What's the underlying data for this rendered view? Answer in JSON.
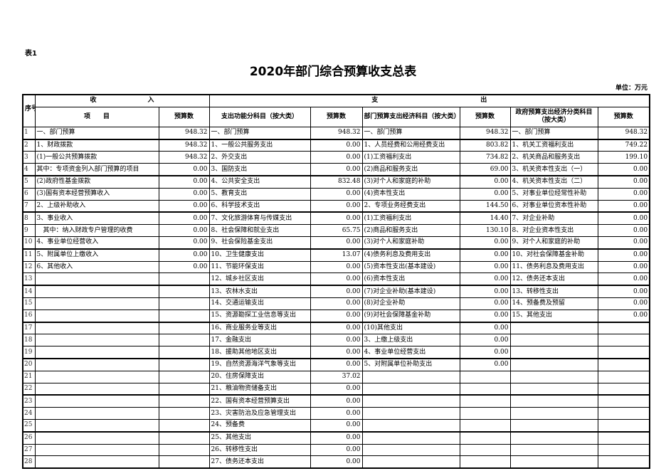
{
  "doc": {
    "tag": "表1",
    "title": "2020年部门综合预算收支总表",
    "unit": "单位：万元"
  },
  "header": {
    "seq": "序号",
    "income": "收　　　　　　　　入",
    "expense": "支　　　　　　　　　　　　　　　　出",
    "item": "项　　目",
    "budget": "预算数",
    "func": "支出功能分科目（按大类）",
    "econ": "部门预算支出经济科目（按大类）",
    "gov": "政府预算支出经济分类科目（按大类）"
  },
  "rows": [
    [
      "1",
      "一、部门预算",
      "948.32",
      "一、部门预算",
      "948.32",
      "一、部门预算",
      "948.32",
      "一、部门预算",
      "948.32"
    ],
    [
      "2",
      "1、财政拨款",
      "948.32",
      "1、一般公共服务支出",
      "0.00",
      "1、人员经费和公用经费支出",
      "803.82",
      "1、机关工资福利支出",
      "749.22"
    ],
    [
      "3",
      "(1)一般公共预算拨款",
      "948.32",
      "2、外交支出",
      "0.00",
      "(1)工资福利支出",
      "734.82",
      "2、机关商品和服务支出",
      "199.10"
    ],
    [
      "4",
      "其中：专项资金列入部门预算的项目",
      "0.00",
      "3、国防支出",
      "0.00",
      "(2)商品和服务支出",
      "69.00",
      "3、机关资本性支出（一）",
      "0.00"
    ],
    [
      "5",
      "(2)政府性基金拨款",
      "0.00",
      "4、公共安全支出",
      "832.48",
      "(3)对个人和家庭的补助",
      "0.00",
      "4、机关资本性支出（二）",
      "0.00"
    ],
    [
      "6",
      "(3)国有资本经营预算收入",
      "0.00",
      "5、教育支出",
      "0.00",
      "(4)资本性支出",
      "0.00",
      "5、对事业单位经常性补助",
      "0.00"
    ],
    [
      "7",
      "2、上级补助收入",
      "0.00",
      "6、科学技术支出",
      "0.00",
      "2、专项业务经费支出",
      "144.50",
      "6、对事业单位资本性补助",
      "0.00"
    ],
    [
      "8",
      "3、事业收入",
      "0.00",
      "7、文化旅游体育与传媒支出",
      "0.00",
      "(1)工资福利支出",
      "14.40",
      "7、对企业补助",
      "0.00"
    ],
    [
      "9",
      "　其中：纳入财政专户管理的收费",
      "0.00",
      "8、社会保障和就业支出",
      "65.75",
      "(2)商品和服务支出",
      "130.10",
      "8、对企业资本性支出",
      "0.00"
    ],
    [
      "10",
      "4、事业单位经营收入",
      "0.00",
      "9、社会保险基金支出",
      "0.00",
      "(3)对个人和家庭补助",
      "0.00",
      "9、对个人和家庭的补助",
      "0.00"
    ],
    [
      "11",
      "5、附属单位上缴收入",
      "0.00",
      "10、卫生健康支出",
      "13.07",
      "(4)债务利息及费用支出",
      "0.00",
      "10、对社会保障基金补助",
      "0.00"
    ],
    [
      "12",
      "6、其他收入",
      "0.00",
      "11、节能环保支出",
      "0.00",
      "(5)资本性支出(基本建设)",
      "0.00",
      "11、债务利息及费用支出",
      "0.00"
    ],
    [
      "13",
      "",
      "",
      "12、城乡社区支出",
      "0.00",
      "(6)资本性支出",
      "0.00",
      "12、债务还本支出",
      "0.00"
    ],
    [
      "14",
      "",
      "",
      "13、农林水支出",
      "0.00",
      "(7)对企业补助(基本建设)",
      "0.00",
      "13、转移性支出",
      "0.00"
    ],
    [
      "15",
      "",
      "",
      "14、交通运输支出",
      "0.00",
      "(8)对企业补助",
      "0.00",
      "14、预备费及预留",
      "0.00"
    ],
    [
      "16",
      "",
      "",
      "15、资源勘探工业信息等支出",
      "0.00",
      "(9)对社会保障基金补助",
      "0.00",
      "15、其他支出",
      "0.00"
    ],
    [
      "17",
      "",
      "",
      "16、商业服务业等支出",
      "0.00",
      "(10)其他支出",
      "0.00",
      "",
      ""
    ],
    [
      "18",
      "",
      "",
      "17、金融支出",
      "0.00",
      "3、上缴上级支出",
      "0.00",
      "",
      ""
    ],
    [
      "19",
      "",
      "",
      "18、援助其他地区支出",
      "0.00",
      "4、事业单位经营支出",
      "0.00",
      "",
      ""
    ],
    [
      "20",
      "",
      "",
      "19、自然资源海洋气象等支出",
      "0.00",
      "5、对附属单位补助支出",
      "0.00",
      "",
      ""
    ],
    [
      "21",
      "",
      "",
      "20、住房保障支出",
      "37.02",
      "",
      "",
      "",
      ""
    ],
    [
      "22",
      "",
      "",
      "21、粮油物资储备支出",
      "0.00",
      "",
      "",
      "",
      ""
    ],
    [
      "23",
      "",
      "",
      "22、国有资本经营预算支出",
      "0.00",
      "",
      "",
      "",
      ""
    ],
    [
      "24",
      "",
      "",
      "23、灾害防治及应急管理支出",
      "0.00",
      "",
      "",
      "",
      ""
    ],
    [
      "25",
      "",
      "",
      "24、预备费",
      "0.00",
      "",
      "",
      "",
      ""
    ],
    [
      "26",
      "",
      "",
      "25、其他支出",
      "0.00",
      "",
      "",
      "",
      ""
    ],
    [
      "27",
      "",
      "",
      "26、转移性支出",
      "0.00",
      "",
      "",
      "",
      ""
    ],
    [
      "28",
      "",
      "",
      "27、债务还本支出",
      "0.00",
      "",
      "",
      "",
      ""
    ]
  ]
}
